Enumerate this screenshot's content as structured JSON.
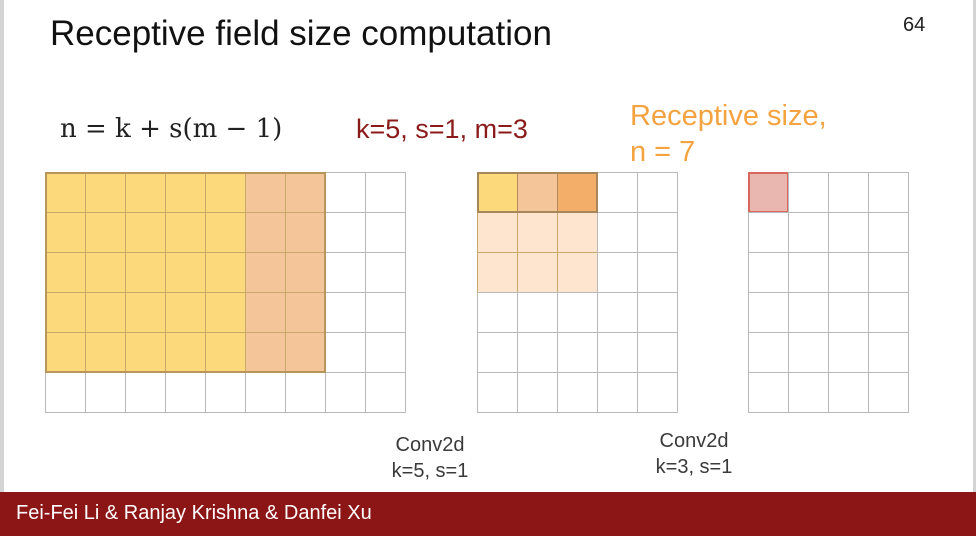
{
  "slide": {
    "title": "Receptive field size computation",
    "page_number": "64",
    "formula_text": "n = k + s(m − 1)",
    "params": "k=5, s=1, m=3",
    "receptive_line1": "Receptive size,",
    "receptive_line2": "n = 7",
    "footer": "Fei-Fei Li & Ranjay Krishna & Danfei Xu"
  },
  "colors": {
    "accent_red": "#8b1a1a",
    "receptive_orange": "#f4a340",
    "footer_bg": "#8c1515",
    "yellow_fill": "#fcd97b",
    "peach_fill": "#f5c59a",
    "light_peach_fill": "#fde5d0",
    "orange_fill": "#f3ae6a",
    "pink_fill": "#e9b7b0",
    "pink_border": "#d9675c"
  },
  "grids": [
    {
      "name": "input-grid",
      "rows": 6,
      "cols": 9,
      "highlights": [
        {
          "row_from": 0,
          "row_to": 4,
          "col_from": 0,
          "col_to": 4,
          "color": "yellow"
        },
        {
          "row_from": 0,
          "row_to": 4,
          "col_from": 5,
          "col_to": 6,
          "color": "peach"
        }
      ]
    },
    {
      "name": "intermediate-grid",
      "rows": 6,
      "cols": 5,
      "highlights": [
        {
          "row_from": 0,
          "row_to": 0,
          "col_from": 0,
          "col_to": 0,
          "color": "yellow"
        },
        {
          "row_from": 0,
          "row_to": 0,
          "col_from": 1,
          "col_to": 1,
          "color": "peach"
        },
        {
          "row_from": 0,
          "row_to": 0,
          "col_from": 2,
          "col_to": 2,
          "color": "orange"
        },
        {
          "row_from": 1,
          "row_to": 2,
          "col_from": 0,
          "col_to": 2,
          "color": "light_peach"
        }
      ]
    },
    {
      "name": "output-grid",
      "rows": 6,
      "cols": 4,
      "highlights": [
        {
          "row_from": 0,
          "row_to": 0,
          "col_from": 0,
          "col_to": 0,
          "color": "pink"
        }
      ]
    }
  ],
  "conv_labels": [
    {
      "line1": "Conv2d",
      "line2": "k=5, s=1"
    },
    {
      "line1": "Conv2d",
      "line2": "k=3, s=1"
    }
  ]
}
